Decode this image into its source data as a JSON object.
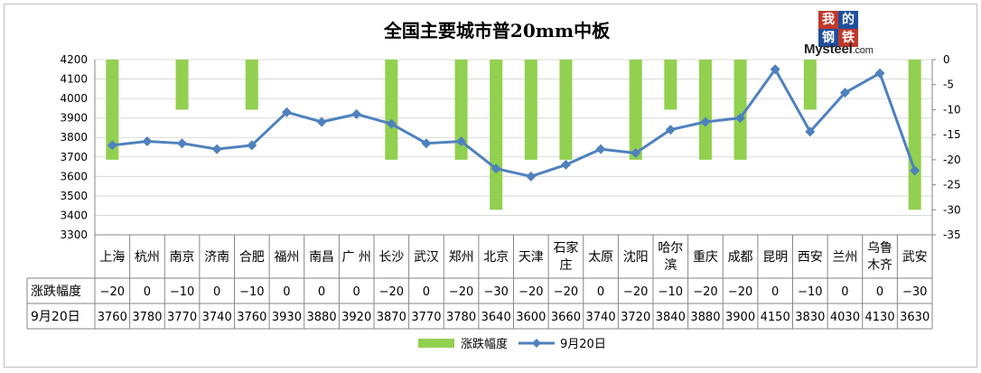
{
  "chart_data": {
    "type": "bar+line",
    "title": "全国主要城市普20mm中板",
    "categories": [
      "上海",
      "杭州",
      "南京",
      "济南",
      "合肥",
      "福州",
      "南昌",
      "广 州",
      "长沙",
      "武汉",
      "郑州",
      "北京",
      "天津",
      "石家庄",
      "太原",
      "沈阳",
      "哈尔滨",
      "重庆",
      "成都",
      "昆明",
      "西安",
      "兰州",
      "乌鲁木齐",
      "武安"
    ],
    "series": [
      {
        "name": "涨跌幅度",
        "type": "bar",
        "axis": "right",
        "color": "#92d050",
        "values": [
          -20,
          0,
          -10,
          0,
          -10,
          0,
          0,
          0,
          -20,
          0,
          -20,
          -30,
          -20,
          -20,
          0,
          -20,
          -10,
          -20,
          -20,
          0,
          -10,
          0,
          0,
          -30
        ]
      },
      {
        "name": "9月20日",
        "type": "line",
        "axis": "left",
        "color": "#4f81bd",
        "values": [
          3760,
          3780,
          3770,
          3740,
          3760,
          3930,
          3880,
          3920,
          3870,
          3770,
          3780,
          3640,
          3600,
          3660,
          3740,
          3720,
          3840,
          3880,
          3900,
          4150,
          3830,
          4030,
          4130,
          3630
        ]
      }
    ],
    "table_rows": [
      {
        "label": "涨跌幅度",
        "values": [
          "−20",
          "0",
          "−10",
          "0",
          "−10",
          "0",
          "0",
          "0",
          "−20",
          "0",
          "−20",
          "−30",
          "−20",
          "−20",
          "0",
          "−20",
          "−10",
          "−20",
          "−20",
          "0",
          "−10",
          "0",
          "0",
          "−30"
        ]
      },
      {
        "label": "9月20日",
        "values": [
          "3760",
          "3780",
          "3770",
          "3740",
          "3760",
          "3930",
          "3880",
          "3920",
          "3870",
          "3770",
          "3780",
          "3640",
          "3600",
          "3660",
          "3740",
          "3720",
          "3840",
          "3880",
          "3900",
          "4150",
          "3830",
          "4030",
          "4130",
          "3630"
        ]
      }
    ],
    "y_left": {
      "min": 3300,
      "max": 4200,
      "step": 100,
      "ticks": [
        "4200",
        "4100",
        "4000",
        "3900",
        "3800",
        "3700",
        "3600",
        "3500",
        "3400",
        "3300"
      ]
    },
    "y_right": {
      "min": -35,
      "max": 0,
      "step": 5,
      "ticks": [
        "0",
        "-5",
        "-10",
        "-15",
        "-20",
        "-25",
        "-30",
        "-35"
      ]
    },
    "grid": true,
    "legend": "bottom"
  },
  "logo": {
    "chars": [
      "我",
      "的",
      "钢",
      "铁"
    ],
    "word": "Mysteel",
    "domain": ".com",
    "colors": [
      "#c0392b",
      "#1f4e9c"
    ]
  }
}
